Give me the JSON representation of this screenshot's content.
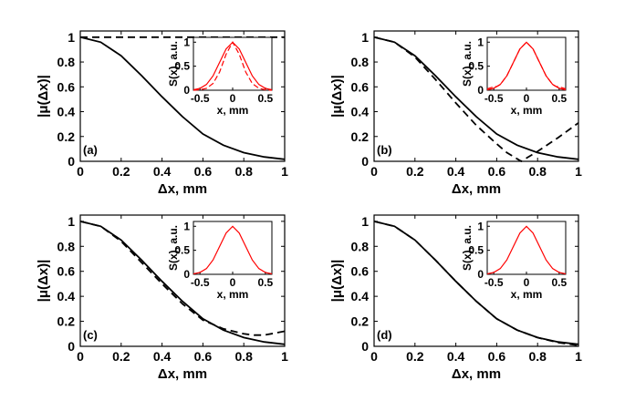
{
  "chart_data": [
    {
      "type": "line",
      "panel_label": "(a)",
      "xlabel": "Δx, mm",
      "ylabel": "|μ(Δx)|",
      "xlim": [
        0,
        1
      ],
      "ylim": [
        0,
        1.05
      ],
      "xticks": [
        "0",
        "0.2",
        "0.4",
        "0.6",
        "0.8",
        "1"
      ],
      "yticks": [
        "0",
        "0.2",
        "0.4",
        "0.6",
        "0.8",
        "1"
      ],
      "series": [
        {
          "name": "solid",
          "style": "solid",
          "x": [
            0,
            0.1,
            0.2,
            0.3,
            0.4,
            0.5,
            0.6,
            0.7,
            0.8,
            0.9,
            1.0
          ],
          "y": [
            1.0,
            0.96,
            0.85,
            0.69,
            0.52,
            0.36,
            0.22,
            0.13,
            0.07,
            0.035,
            0.016
          ]
        },
        {
          "name": "dashed",
          "style": "dashed",
          "x": [
            0,
            0.5,
            1.0
          ],
          "y": [
            1.0,
            1.0,
            1.0
          ]
        }
      ],
      "inset": {
        "xlabel": "x, mm",
        "ylabel": "S(x), a.u.",
        "xlim": [
          -0.6,
          0.6
        ],
        "ylim": [
          0,
          1.1
        ],
        "xticks": [
          "-0.5",
          "0",
          "0.5"
        ],
        "yticks": [
          "0",
          "0.5",
          "1"
        ],
        "series": [
          {
            "name": "solid",
            "style": "solid",
            "x": [
              -0.6,
              -0.5,
              -0.4,
              -0.3,
              -0.2,
              -0.1,
              0,
              0.1,
              0.2,
              0.3,
              0.4,
              0.5,
              0.6
            ],
            "y": [
              0.01,
              0.04,
              0.12,
              0.3,
              0.58,
              0.86,
              1.0,
              0.86,
              0.58,
              0.3,
              0.12,
              0.04,
              0.01
            ]
          },
          {
            "name": "dashed",
            "style": "dashed",
            "x": [
              -0.6,
              -0.5,
              -0.4,
              -0.3,
              -0.2,
              -0.1,
              0,
              0.1,
              0.2,
              0.3,
              0.4,
              0.5,
              0.6
            ],
            "y": [
              0.0,
              0.01,
              0.04,
              0.14,
              0.38,
              0.75,
              1.0,
              0.75,
              0.38,
              0.14,
              0.04,
              0.01,
              0.0
            ]
          }
        ]
      }
    },
    {
      "type": "line",
      "panel_label": "(b)",
      "xlabel": "Δx, mm",
      "ylabel": "|μ(Δx)|",
      "xlim": [
        0,
        1
      ],
      "ylim": [
        0,
        1.05
      ],
      "xticks": [
        "0",
        "0.2",
        "0.4",
        "0.6",
        "0.8",
        "1"
      ],
      "yticks": [
        "0",
        "0.2",
        "0.4",
        "0.6",
        "0.8",
        "1"
      ],
      "series": [
        {
          "name": "solid",
          "style": "solid",
          "x": [
            0,
            0.1,
            0.2,
            0.3,
            0.4,
            0.5,
            0.6,
            0.7,
            0.8,
            0.9,
            1.0
          ],
          "y": [
            1.0,
            0.96,
            0.85,
            0.69,
            0.52,
            0.36,
            0.22,
            0.13,
            0.07,
            0.035,
            0.016
          ]
        },
        {
          "name": "dashed",
          "style": "dashed",
          "x": [
            0,
            0.1,
            0.2,
            0.3,
            0.4,
            0.5,
            0.6,
            0.65,
            0.7,
            0.72,
            0.75,
            0.8,
            0.9,
            1.0
          ],
          "y": [
            1.0,
            0.96,
            0.84,
            0.66,
            0.47,
            0.29,
            0.14,
            0.07,
            0.02,
            0.0,
            0.03,
            0.08,
            0.19,
            0.31
          ]
        }
      ],
      "inset": {
        "xlabel": "x, mm",
        "ylabel": "S(x), a.u.",
        "xlim": [
          -0.6,
          0.6
        ],
        "ylim": [
          0,
          1.1
        ],
        "xticks": [
          "-0.5",
          "0",
          "0.5"
        ],
        "yticks": [
          "0",
          "0.5",
          "1"
        ],
        "series": [
          {
            "name": "solid",
            "style": "solid",
            "x": [
              -0.6,
              -0.5,
              -0.4,
              -0.3,
              -0.2,
              -0.1,
              0,
              0.1,
              0.2,
              0.3,
              0.4,
              0.5,
              0.6
            ],
            "y": [
              0.01,
              0.04,
              0.12,
              0.3,
              0.58,
              0.86,
              1.0,
              0.86,
              0.58,
              0.3,
              0.12,
              0.04,
              0.01
            ]
          },
          {
            "name": "dashed",
            "style": "dashed",
            "x": [
              -0.6,
              -0.5,
              -0.45,
              -0.4,
              -0.3,
              -0.2,
              -0.1,
              0,
              0.1,
              0.2,
              0.3,
              0.4,
              0.45,
              0.5,
              0.6
            ],
            "y": [
              0.03,
              0.07,
              0.08,
              0.12,
              0.3,
              0.58,
              0.86,
              1.0,
              0.86,
              0.58,
              0.3,
              0.12,
              0.08,
              0.07,
              0.03
            ]
          }
        ]
      }
    },
    {
      "type": "line",
      "panel_label": "(c)",
      "xlabel": "Δx, mm",
      "ylabel": "|μ(Δx)|",
      "xlim": [
        0,
        1
      ],
      "ylim": [
        0,
        1.05
      ],
      "xticks": [
        "0",
        "0.2",
        "0.4",
        "0.6",
        "0.8",
        "1"
      ],
      "yticks": [
        "0",
        "0.2",
        "0.4",
        "0.6",
        "0.8",
        "1"
      ],
      "series": [
        {
          "name": "solid",
          "style": "solid",
          "x": [
            0,
            0.1,
            0.2,
            0.3,
            0.4,
            0.5,
            0.6,
            0.7,
            0.8,
            0.9,
            1.0
          ],
          "y": [
            1.0,
            0.96,
            0.85,
            0.69,
            0.52,
            0.36,
            0.22,
            0.13,
            0.07,
            0.035,
            0.016
          ]
        },
        {
          "name": "dashed",
          "style": "dashed",
          "x": [
            0,
            0.1,
            0.2,
            0.3,
            0.4,
            0.5,
            0.6,
            0.7,
            0.8,
            0.85,
            0.9,
            1.0
          ],
          "y": [
            1.0,
            0.96,
            0.84,
            0.67,
            0.5,
            0.34,
            0.21,
            0.14,
            0.1,
            0.09,
            0.09,
            0.12
          ]
        }
      ],
      "inset": {
        "xlabel": "x, mm",
        "ylabel": "S(x), a.u.",
        "xlim": [
          -0.6,
          0.6
        ],
        "ylim": [
          0,
          1.1
        ],
        "xticks": [
          "-0.5",
          "0",
          "0.5"
        ],
        "yticks": [
          "0",
          "0.5",
          "1"
        ],
        "series": [
          {
            "name": "solid",
            "style": "solid",
            "x": [
              -0.6,
              -0.5,
              -0.4,
              -0.3,
              -0.2,
              -0.1,
              0,
              0.1,
              0.2,
              0.3,
              0.4,
              0.5,
              0.6
            ],
            "y": [
              0.01,
              0.04,
              0.12,
              0.3,
              0.58,
              0.86,
              1.0,
              0.86,
              0.58,
              0.3,
              0.12,
              0.04,
              0.01
            ]
          }
        ]
      }
    },
    {
      "type": "line",
      "panel_label": "(d)",
      "xlabel": "Δx, mm",
      "ylabel": "|μ(Δx)|",
      "xlim": [
        0,
        1
      ],
      "ylim": [
        0,
        1.05
      ],
      "xticks": [
        "0",
        "0.2",
        "0.4",
        "0.6",
        "0.8",
        "1"
      ],
      "yticks": [
        "0",
        "0.2",
        "0.4",
        "0.6",
        "0.8",
        "1"
      ],
      "series": [
        {
          "name": "solid",
          "style": "solid",
          "x": [
            0,
            0.1,
            0.2,
            0.3,
            0.4,
            0.5,
            0.6,
            0.7,
            0.8,
            0.9,
            1.0
          ],
          "y": [
            1.0,
            0.96,
            0.85,
            0.69,
            0.52,
            0.36,
            0.22,
            0.13,
            0.07,
            0.035,
            0.016
          ]
        },
        {
          "name": "dashed",
          "style": "dashed",
          "x": [
            0,
            0.1,
            0.2,
            0.3,
            0.4,
            0.5,
            0.6,
            0.7,
            0.8,
            0.9,
            1.0
          ],
          "y": [
            1.0,
            0.96,
            0.85,
            0.69,
            0.52,
            0.36,
            0.22,
            0.13,
            0.07,
            0.03,
            0.008
          ]
        }
      ],
      "inset": {
        "xlabel": "x, mm",
        "ylabel": "S(x), a.u.",
        "xlim": [
          -0.6,
          0.6
        ],
        "ylim": [
          0,
          1.1
        ],
        "xticks": [
          "-0.5",
          "0",
          "0.5"
        ],
        "yticks": [
          "0",
          "0.5",
          "1"
        ],
        "series": [
          {
            "name": "solid",
            "style": "solid",
            "x": [
              -0.6,
              -0.5,
              -0.4,
              -0.3,
              -0.2,
              -0.1,
              0,
              0.1,
              0.2,
              0.3,
              0.4,
              0.5,
              0.6
            ],
            "y": [
              0.01,
              0.04,
              0.12,
              0.3,
              0.58,
              0.86,
              1.0,
              0.86,
              0.58,
              0.3,
              0.12,
              0.04,
              0.01
            ]
          }
        ]
      }
    }
  ],
  "colors": {
    "main_line": "#000000",
    "inset_line": "#ff0000"
  }
}
